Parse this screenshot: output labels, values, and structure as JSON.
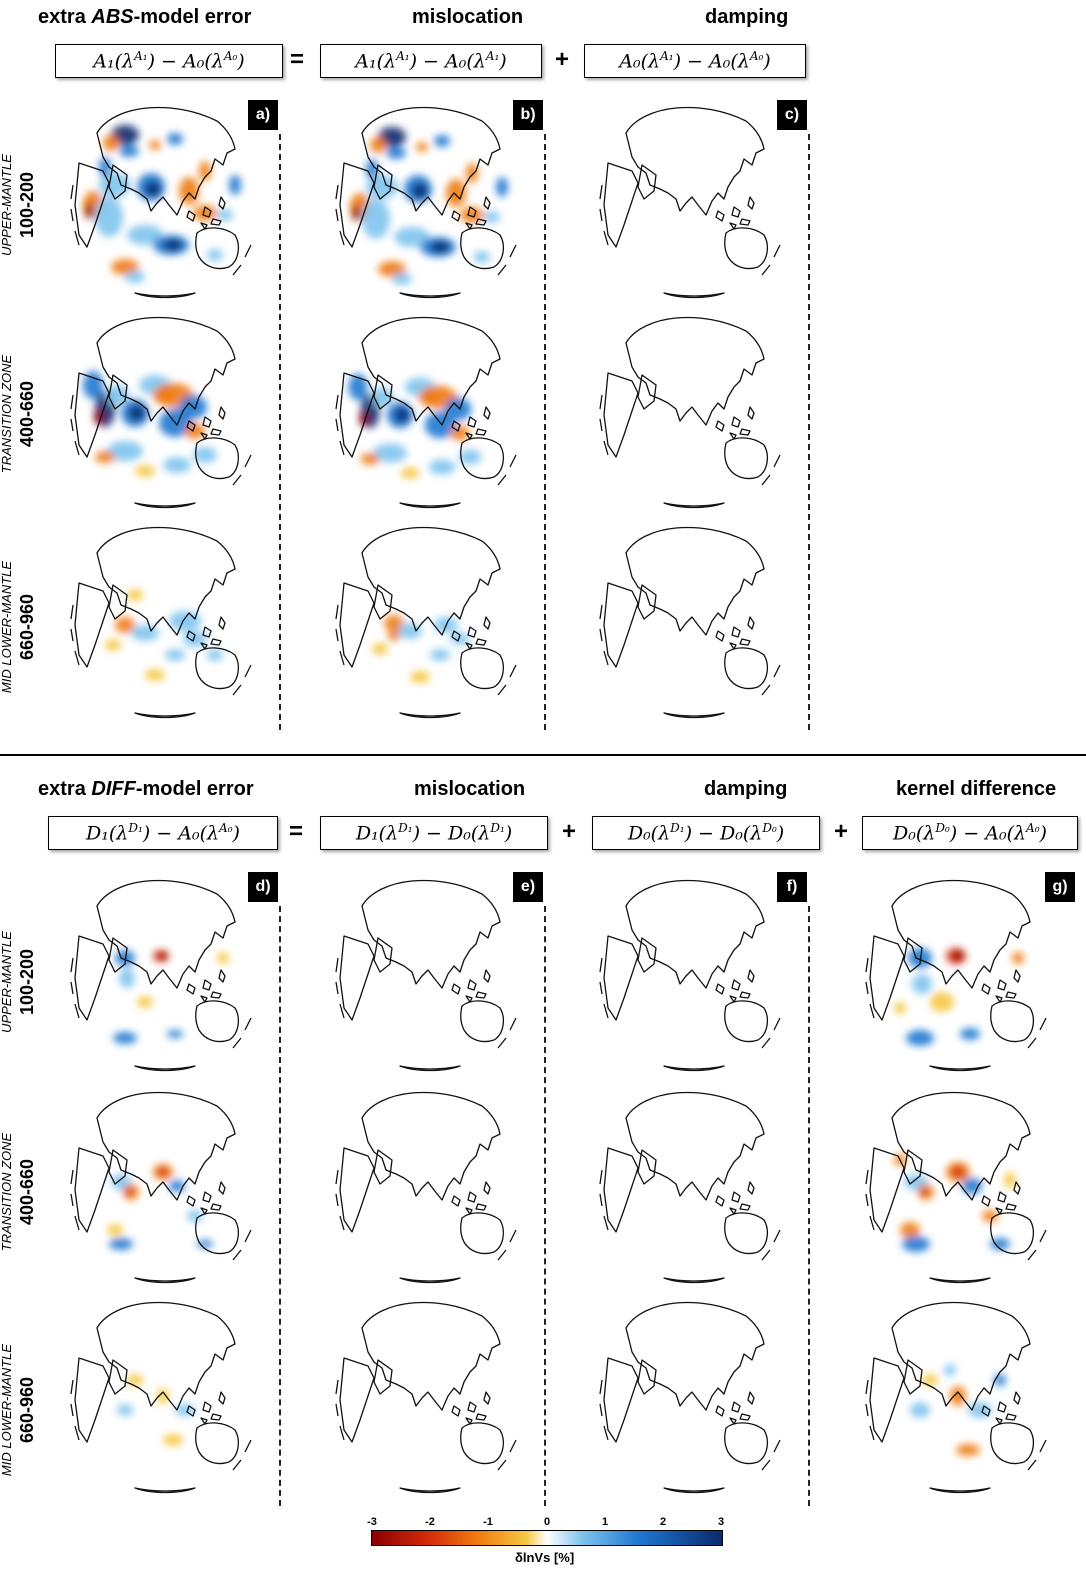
{
  "top_section": {
    "titles": {
      "abs_prefix": "extra ",
      "abs_italic": "ABS",
      "abs_suffix": "-model error",
      "mislocation": "mislocation",
      "damping": "damping"
    },
    "equation": {
      "lhs": "A₁(λ^A₁) − A₀(λ^A₀)",
      "term1": "A₁(λ^A₁) − A₀(λ^A₁)",
      "term2": "A₀(λ^A₁) − A₀(λ^A₀)",
      "op_eq": "=",
      "op_plus": "+"
    },
    "panels": [
      "a)",
      "b)",
      "c)"
    ]
  },
  "bottom_section": {
    "titles": {
      "diff_prefix": "extra ",
      "diff_italic": "DIFF",
      "diff_suffix": "-model error",
      "mislocation": "mislocation",
      "damping": "damping",
      "kernel": "kernel difference"
    },
    "equation": {
      "lhs": "D₁(λ^D₁) − A₀(λ^A₀)",
      "term1": "D₁(λ^D₁) − D₀(λ^D₁)",
      "term2": "D₀(λ^D₁) − D₀(λ^D₀)",
      "term3": "D₀(λ^D₀) − A₀(λ^A₀)",
      "op_eq": "=",
      "op_plus": "+"
    },
    "panels": [
      "d)",
      "e)",
      "f)",
      "g)"
    ]
  },
  "rows": [
    {
      "descriptor": "UPPER-MANTLE",
      "depth": "100-200"
    },
    {
      "descriptor": "TRANSITION ZONE",
      "depth": "400-660"
    },
    {
      "descriptor": "MID LOWER-MANTLE",
      "depth": "660-960"
    }
  ],
  "colorbar": {
    "ticks": [
      "-3",
      "-2",
      "-1",
      "0",
      "1",
      "2",
      "3"
    ],
    "label": "δlnVs  [%]",
    "colors": [
      "#8b0000",
      "#d42a0a",
      "#f07a10",
      "#f5c843",
      "#ffffff",
      "#7fc4ee",
      "#1f78d1",
      "#0a2a6e"
    ]
  }
}
